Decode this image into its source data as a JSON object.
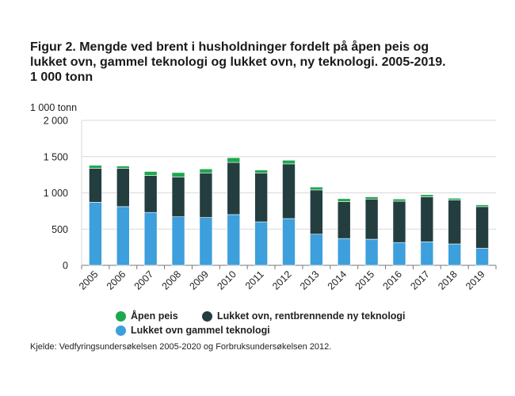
{
  "chart_data": {
    "type": "bar",
    "stacked": true,
    "title": "Figur 2. Mengde ved brent i husholdninger fordelt på åpen peis og\nlukket ovn, gammel teknologi og lukket ovn, ny teknologi. 2005-2019.\n1 000 tonn",
    "ylabel": "1 000 tonn",
    "xlabel": "",
    "ylim": [
      0,
      2000
    ],
    "yticks": [
      0,
      500,
      1000,
      1500,
      2000
    ],
    "ytick_labels": [
      "0",
      "500",
      "1 000",
      "1 500",
      "2 000"
    ],
    "grid": true,
    "legend_position": "bottom",
    "categories": [
      "2005",
      "2006",
      "2007",
      "2008",
      "2009",
      "2010",
      "2011",
      "2012",
      "2013",
      "2014",
      "2015",
      "2016",
      "2017",
      "2018",
      "2019"
    ],
    "series": [
      {
        "name": "Lukket ovn gammel teknologi",
        "color": "#3d9fdc",
        "values": [
          870,
          810,
          730,
          670,
          660,
          700,
          600,
          645,
          430,
          370,
          360,
          315,
          325,
          295,
          235
        ]
      },
      {
        "name": "Lukket ovn, rentbrennende ny teknologi",
        "color": "#243e40",
        "values": [
          470,
          530,
          510,
          550,
          615,
          720,
          675,
          755,
          610,
          510,
          555,
          570,
          620,
          605,
          575
        ]
      },
      {
        "name": "Åpen peis",
        "color": "#1da84f",
        "values": [
          40,
          30,
          55,
          60,
          55,
          65,
          40,
          50,
          40,
          40,
          30,
          30,
          30,
          25,
          25
        ]
      }
    ]
  },
  "legend": {
    "items": [
      {
        "label": "Åpen peis",
        "color": "#1da84f"
      },
      {
        "label": "Lukket ovn, rentbrennende ny teknologi",
        "color": "#243e40"
      },
      {
        "label": "Lukket ovn gammel teknologi",
        "color": "#3d9fdc"
      }
    ]
  },
  "source": "Kjelde: Vedfyringsundersøkelsen 2005-2020 og Forbruksundersøkelsen 2012."
}
